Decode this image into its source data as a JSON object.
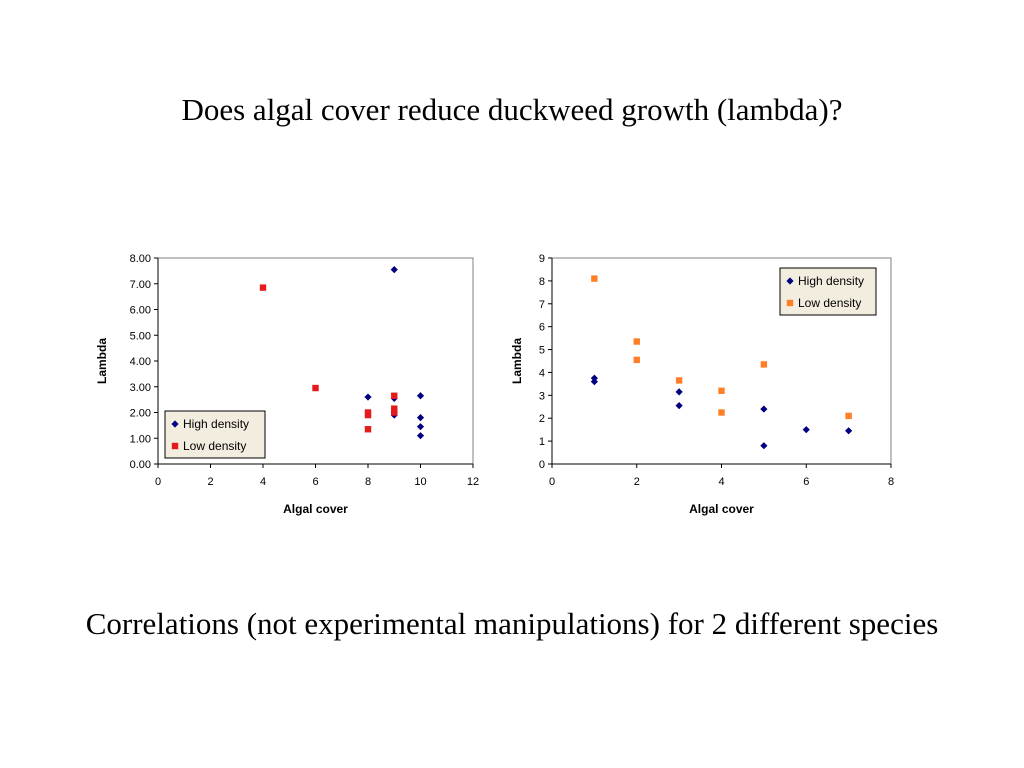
{
  "slide": {
    "title": "Does algal cover reduce duckweed growth (lambda)?",
    "caption": "Correlations (not experimental manipulations) for 2 different species"
  },
  "colors": {
    "high_density": "#000080",
    "low_density_left": "#e41a1c",
    "low_density_right": "#ff7f27",
    "legend_bg": "#f3ede0"
  },
  "chart_data": [
    {
      "type": "scatter",
      "title": "",
      "xlabel": "Algal cover",
      "ylabel": "Lambda",
      "xlim": [
        0,
        12
      ],
      "ylim": [
        0,
        8
      ],
      "xticks": [
        "0",
        "2",
        "4",
        "6",
        "8",
        "10",
        "12"
      ],
      "yticks": [
        "0.00",
        "1.00",
        "2.00",
        "3.00",
        "4.00",
        "5.00",
        "6.00",
        "7.00",
        "8.00"
      ],
      "grid": false,
      "legend_position": "bottom-left",
      "series": [
        {
          "name": "High density",
          "marker": "diamond",
          "color": "#000080",
          "x": [
            8,
            9,
            9,
            9,
            9,
            10,
            10,
            10,
            10
          ],
          "y": [
            2.6,
            7.55,
            2.55,
            2.0,
            1.9,
            2.65,
            1.8,
            1.45,
            1.1
          ]
        },
        {
          "name": "Low density",
          "marker": "square",
          "color": "#e41a1c",
          "x": [
            4,
            6,
            8,
            8,
            8,
            9,
            9,
            9
          ],
          "y": [
            6.85,
            2.95,
            2.0,
            1.9,
            1.35,
            2.65,
            2.15,
            2.0
          ]
        }
      ]
    },
    {
      "type": "scatter",
      "title": "",
      "xlabel": "Algal cover",
      "ylabel": "Lambda",
      "xlim": [
        0,
        8
      ],
      "ylim": [
        0,
        9
      ],
      "xticks": [
        "0",
        "2",
        "4",
        "6",
        "8"
      ],
      "yticks": [
        "0",
        "1",
        "2",
        "3",
        "4",
        "5",
        "6",
        "7",
        "8",
        "9"
      ],
      "grid": false,
      "legend_position": "top-right",
      "series": [
        {
          "name": "High density",
          "marker": "diamond",
          "color": "#000080",
          "x": [
            1,
            1,
            3,
            3,
            5,
            5,
            6,
            7
          ],
          "y": [
            3.75,
            3.6,
            3.15,
            2.55,
            2.4,
            0.8,
            1.5,
            1.45
          ]
        },
        {
          "name": "Low density",
          "marker": "square",
          "color": "#ff7f27",
          "x": [
            1,
            2,
            2,
            3,
            4,
            4,
            5,
            7
          ],
          "y": [
            8.1,
            5.35,
            4.55,
            3.65,
            3.2,
            2.25,
            4.35,
            2.1
          ]
        }
      ]
    }
  ]
}
